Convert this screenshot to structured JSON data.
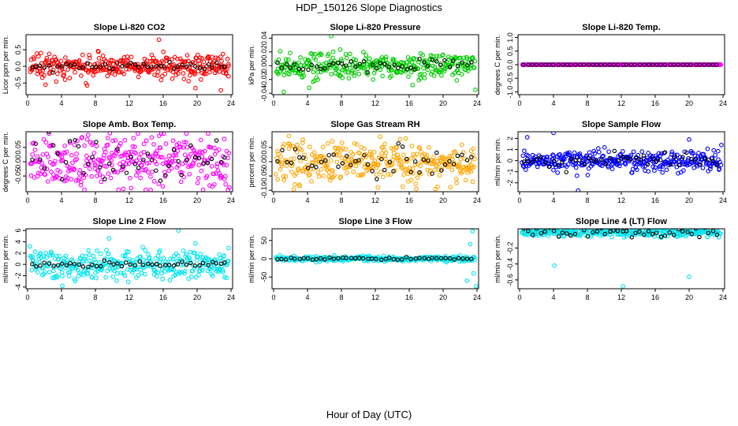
{
  "figure": {
    "title": "HDP_150126  Slope Diagnostics",
    "xlabel": "Hour of Day (UTC)"
  },
  "chart_data": [
    {
      "type": "scatter",
      "title": "Slope Li-820 CO2",
      "ylabel": "Licor ppm per min.",
      "xlim": [
        0,
        24
      ],
      "xticks": [
        0,
        4,
        8,
        12,
        16,
        20,
        24
      ],
      "ylim": [
        -0.85,
        0.95
      ],
      "yticks": [
        -0.5,
        0.0,
        0.5
      ],
      "ytick_labels": [
        "-0.5",
        "0.0",
        "0.5"
      ],
      "color": "#ff0000",
      "spread": 0.18,
      "highlight_spread": 0.05,
      "outliers": [
        [
          15.5,
          0.8
        ],
        [
          19.8,
          -0.65
        ],
        [
          22.8,
          -0.72
        ],
        [
          23.7,
          -0.3
        ]
      ]
    },
    {
      "type": "scatter",
      "title": "Slope Li-820 Pressure",
      "ylabel": "kPa per min.",
      "xlim": [
        0,
        24
      ],
      "xticks": [
        0,
        4,
        8,
        12,
        16,
        20,
        24
      ],
      "ylim": [
        -0.042,
        0.045
      ],
      "yticks": [
        -0.04,
        -0.02,
        0.0,
        0.02,
        0.04
      ],
      "ytick_labels": [
        "-0.04",
        "-0.02",
        "0.00",
        "0.02",
        "0.04"
      ],
      "color": "#00cc00",
      "spread": 0.009,
      "highlight_spread": 0.004,
      "outliers": [
        [
          6.8,
          0.043
        ],
        [
          1.2,
          -0.038
        ],
        [
          4.2,
          -0.032
        ],
        [
          16.4,
          -0.028
        ],
        [
          23.8,
          -0.035
        ]
      ]
    },
    {
      "type": "scatter",
      "title": "Slope Li-820 Temp.",
      "ylabel": "degrees C per min.",
      "xlim": [
        0,
        24
      ],
      "xticks": [
        0,
        4,
        8,
        12,
        16,
        20,
        24
      ],
      "ylim": [
        -1.1,
        1.1
      ],
      "yticks": [
        -1.0,
        -0.5,
        0.0,
        0.5,
        1.0
      ],
      "ytick_labels": [
        "-1.0",
        "-0.5",
        "0.0",
        "0.5",
        "1.0"
      ],
      "color": "#ff00ff",
      "spread": 0.0,
      "highlight_spread": 0.0,
      "outliers": []
    },
    {
      "type": "scatter",
      "title": "Slope Amb. Box Temp.",
      "ylabel": "degrees C per min.",
      "xlim": [
        0,
        24
      ],
      "xticks": [
        0,
        4,
        8,
        12,
        16,
        20,
        24
      ],
      "ylim": [
        -0.105,
        0.105
      ],
      "yticks": [
        -0.05,
        0.0,
        0.05
      ],
      "ytick_labels": [
        "-0.05",
        "0.00",
        "0.05"
      ],
      "color": "#ff00ff",
      "spread": 0.045,
      "highlight_spread": 0.04,
      "outliers": [
        [
          9.7,
          0.1
        ],
        [
          11.3,
          -0.095
        ],
        [
          23.8,
          -0.09
        ]
      ]
    },
    {
      "type": "scatter",
      "title": "Slope Gas Stream RH",
      "ylabel": "percent per min.",
      "xlim": [
        0,
        24
      ],
      "xticks": [
        0,
        4,
        8,
        12,
        16,
        20,
        24
      ],
      "ylim": [
        -0.105,
        0.105
      ],
      "yticks": [
        -0.1,
        -0.05,
        0.0,
        0.05
      ],
      "ytick_labels": [
        "-0.10",
        "-0.05",
        "0.00",
        "0.05"
      ],
      "color": "#ffa500",
      "spread": 0.035,
      "highlight_spread": 0.025,
      "outliers": [
        [
          1.8,
          0.09
        ],
        [
          2.5,
          -0.08
        ],
        [
          12.3,
          -0.09
        ],
        [
          23.5,
          -0.07
        ]
      ]
    },
    {
      "type": "scatter",
      "title": "Slope Sample Flow",
      "ylabel": "ml/min per min.",
      "xlim": [
        0,
        24
      ],
      "xticks": [
        0,
        4,
        8,
        12,
        16,
        20,
        24
      ],
      "ylim": [
        -2.8,
        2.6
      ],
      "yticks": [
        -2,
        -1,
        0,
        1,
        2
      ],
      "ytick_labels": [
        "-2",
        "-1",
        "0",
        "1",
        "2"
      ],
      "color": "#0000ff",
      "spread": 0.45,
      "highlight_spread": 0.3,
      "outliers": [
        [
          0.9,
          2.1
        ],
        [
          4.0,
          2.5
        ],
        [
          6.9,
          -2.7
        ],
        [
          14.8,
          -0.9
        ],
        [
          20.0,
          1.9
        ],
        [
          23.8,
          1.4
        ]
      ]
    },
    {
      "type": "scatter",
      "title": "Slope Line 2 Flow",
      "ylabel": "ml/min per min.",
      "xlim": [
        0,
        24
      ],
      "xticks": [
        0,
        4,
        8,
        12,
        16,
        20,
        24
      ],
      "ylim": [
        -4.3,
        6.3
      ],
      "yticks": [
        -4,
        -2,
        0,
        2,
        4,
        6
      ],
      "ytick_labels": [
        "-4",
        "-2",
        "0",
        "2",
        "4",
        "6"
      ],
      "color": "#00e5ee",
      "spread": 1.3,
      "highlight_spread": 0.3,
      "outliers": [
        [
          4.1,
          -3.8
        ],
        [
          17.8,
          6.0
        ],
        [
          9.6,
          4.6
        ]
      ]
    },
    {
      "type": "scatter",
      "title": "Slope Line 3 Flow",
      "ylabel": "ml/min per min.",
      "xlim": [
        0,
        24
      ],
      "xticks": [
        0,
        4,
        8,
        12,
        16,
        20,
        24
      ],
      "ylim": [
        -82,
        82
      ],
      "yticks": [
        -50,
        0,
        50
      ],
      "ytick_labels": [
        "-50",
        "0",
        "50"
      ],
      "color": "#00e5ee",
      "spread": 3,
      "highlight_spread": 2,
      "outliers": [
        [
          23.5,
          75
        ],
        [
          23.9,
          -75
        ],
        [
          22.8,
          -60
        ],
        [
          23.2,
          40
        ],
        [
          23.6,
          -40
        ]
      ]
    },
    {
      "type": "scatter",
      "title": "Slope Line 4 (LT) Flow",
      "ylabel": "ml/min per min.",
      "xlim": [
        0,
        24
      ],
      "xticks": [
        0,
        4,
        8,
        12,
        16,
        20,
        24
      ],
      "ylim": [
        -0.71,
        0.04
      ],
      "yticks": [
        -0.6,
        -0.4,
        -0.2
      ],
      "ytick_labels": [
        "-0.6",
        "-0.4",
        "-0.2"
      ],
      "color": "#00e5ee",
      "spread": 0.03,
      "highlight_spread": 0.03,
      "outliers": [
        [
          4.1,
          -0.42
        ],
        [
          12.2,
          -0.68
        ],
        [
          20.0,
          -0.56
        ]
      ]
    }
  ]
}
